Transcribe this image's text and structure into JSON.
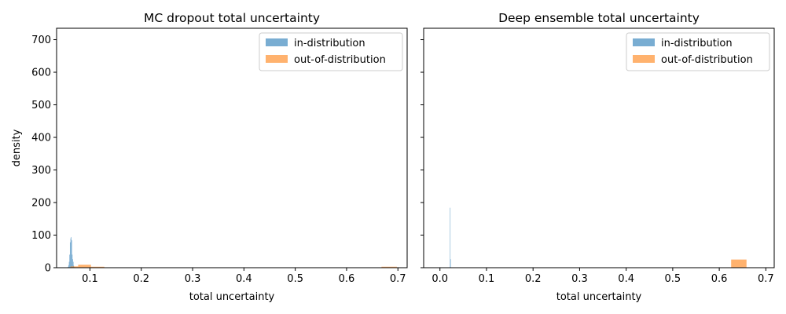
{
  "colors": {
    "in_distribution": "#1f77b4",
    "out_of_distribution": "#ff7f0e"
  },
  "chart_data": [
    {
      "type": "histogram",
      "title": "MC dropout total uncertainty",
      "xlabel": "total uncertainty",
      "ylabel": "density",
      "xlim": [
        0.035,
        0.718
      ],
      "ylim": [
        0,
        735
      ],
      "xticks": [
        0.1,
        0.2,
        0.3,
        0.4,
        0.5,
        0.6,
        0.7
      ],
      "yticks": [
        0,
        100,
        200,
        300,
        400,
        500,
        600,
        700
      ],
      "xtick_labels": [
        "0.1",
        "0.2",
        "0.3",
        "0.4",
        "0.5",
        "0.6",
        "0.7"
      ],
      "ytick_labels": [
        "0",
        "100",
        "200",
        "300",
        "400",
        "500",
        "600",
        "700"
      ],
      "legend": {
        "position": "upper-right",
        "entries": [
          "in-distribution",
          "out-of-distribution"
        ]
      },
      "series": [
        {
          "name": "in-distribution",
          "color": "#1f77b4",
          "opacity": 0.6,
          "bins": [
            [
              0.057,
              0.058,
              3
            ],
            [
              0.058,
              0.059,
              8
            ],
            [
              0.059,
              0.06,
              18
            ],
            [
              0.06,
              0.061,
              40
            ],
            [
              0.061,
              0.062,
              78
            ],
            [
              0.062,
              0.063,
              90
            ],
            [
              0.063,
              0.064,
              94
            ],
            [
              0.064,
              0.065,
              84
            ],
            [
              0.065,
              0.066,
              40
            ],
            [
              0.066,
              0.067,
              26
            ],
            [
              0.067,
              0.068,
              18
            ],
            [
              0.068,
              0.069,
              6
            ],
            [
              0.069,
              0.07,
              2
            ]
          ]
        },
        {
          "name": "out-of-distribution",
          "color": "#ff7f0e",
          "opacity": 0.6,
          "bins": [
            [
              0.062,
              0.077,
              4
            ],
            [
              0.077,
              0.102,
              9
            ],
            [
              0.102,
              0.128,
              3
            ],
            [
              0.668,
              0.698,
              3
            ]
          ]
        }
      ]
    },
    {
      "type": "histogram",
      "title": "Deep ensemble total uncertainty",
      "xlabel": "total uncertainty",
      "ylabel": "",
      "xlim": [
        -0.035,
        0.718
      ],
      "ylim": [
        0,
        735
      ],
      "xticks": [
        0.0,
        0.1,
        0.2,
        0.3,
        0.4,
        0.5,
        0.6,
        0.7
      ],
      "yticks": [
        0,
        100,
        200,
        300,
        400,
        500,
        600,
        700
      ],
      "xtick_labels": [
        "0.0",
        "0.1",
        "0.2",
        "0.3",
        "0.4",
        "0.5",
        "0.6",
        "0.7"
      ],
      "ytick_labels": [],
      "legend": {
        "position": "upper-right",
        "entries": [
          "in-distribution",
          "out-of-distribution"
        ]
      },
      "series": [
        {
          "name": "in-distribution",
          "color": "#1f77b4",
          "opacity": 0.6,
          "bins": [
            [
              0.0215,
              0.0222,
              184
            ],
            [
              0.0222,
              0.0229,
              26
            ]
          ]
        },
        {
          "name": "out-of-distribution",
          "color": "#ff7f0e",
          "opacity": 0.6,
          "bins": [
            [
              0.6255,
              0.6585,
              25
            ]
          ]
        }
      ]
    }
  ]
}
